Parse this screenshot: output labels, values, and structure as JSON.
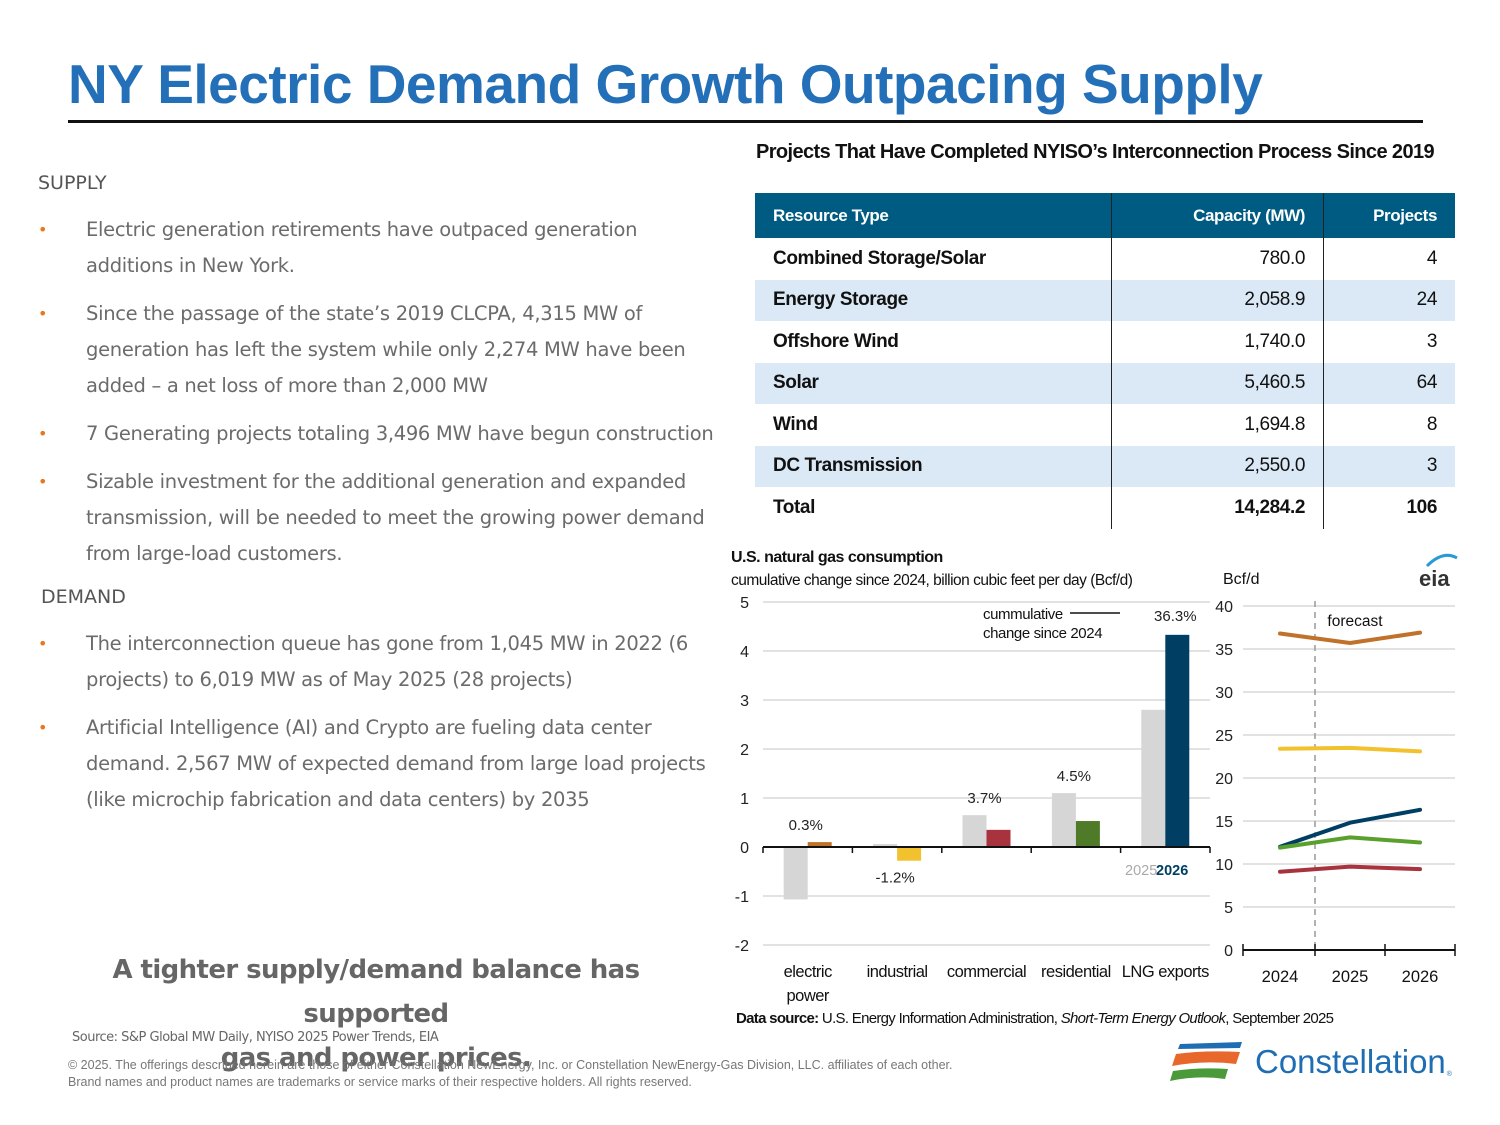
{
  "page": {
    "title": "NY Electric Demand Growth Outpacing Supply"
  },
  "left": {
    "supply_heading": "SUPPLY",
    "supply_bullets": [
      "Electric generation retirements have outpaced generation additions in New York.",
      "Since the passage of the state’s 2019 CLCPA, 4,315 MW of generation has left the system while only 2,274 MW have been added – a net loss of more than 2,000 MW",
      "7 Generating projects totaling 3,496 MW have begun construction",
      "Sizable investment for the additional generation and expanded transmission, will be needed to meet the growing power demand from large-load customers."
    ],
    "demand_heading": "DEMAND",
    "demand_bullets": [
      "The interconnection queue has gone from 1,045 MW in 2022 (6 projects) to 6,019 MW as of May 2025 (28 projects)",
      "Artificial Intelligence (AI) and Crypto are fueling data center demand. 2,567 MW of expected demand from large load projects (like microchip fabrication and data centers) by 2035"
    ],
    "bullet_glyph": "•",
    "tagline_line1": "A tighter supply/demand balance has supported",
    "tagline_line2": "gas and power prices.",
    "source": "Source: S&P Global MW Daily, NYISO 2025 Power Trends, EIA"
  },
  "footer": {
    "copyright_line1": "© 2025. The offerings described herein are those of either Constellation NewEnergy, Inc. or Constellation NewEnergy-Gas Division, LLC. affiliates of each other.",
    "copyright_line2": "Brand names and product names are trademarks or service marks of their respective holders. All rights reserved.",
    "logo_text": "Constellation",
    "logo_mark": "®"
  },
  "colors": {
    "title_blue": "#2470b8",
    "table_header": "#005b82",
    "table_alt_row": "#dbe8f5",
    "bullet_orange": "#e87722",
    "bar_2025": "#d6d6d6",
    "electric_power": "#c0722a",
    "industrial": "#f2c12e",
    "commercial": "#a8333f",
    "residential": "#4f7a28",
    "lng_exports": "#003f63",
    "line_green": "#5aa02c"
  },
  "chart_data": [
    {
      "type": "table",
      "title": "Projects That Have Completed NYISO’s Interconnection Process Since 2019",
      "columns": [
        "Resource Type",
        "Capacity (MW)",
        "Projects"
      ],
      "rows": [
        [
          "Combined Storage/Solar",
          "780.0",
          "4"
        ],
        [
          "Energy Storage",
          "2,058.9",
          "24"
        ],
        [
          "Offshore Wind",
          "1,740.0",
          "3"
        ],
        [
          "Solar",
          "5,460.5",
          "64"
        ],
        [
          "Wind",
          "1,694.8",
          "8"
        ],
        [
          "DC Transmission",
          "2,550.0",
          "3"
        ]
      ],
      "total": [
        "Total",
        "14,284.2",
        "106"
      ]
    },
    {
      "type": "bar",
      "title": "U.S. natural gas consumption",
      "subtitle": "cumulative change since 2024, billion cubic feet per day (Bcf/d)",
      "categories": [
        "electric power",
        "industrial",
        "commercial",
        "residential",
        "LNG exports"
      ],
      "category_lines": [
        [
          "electric",
          "power"
        ],
        [
          "industrial"
        ],
        [
          "commercial"
        ],
        [
          "residential"
        ],
        [
          "LNG exports"
        ]
      ],
      "series": [
        {
          "name": "2025",
          "values": [
            -1.07,
            0.06,
            0.65,
            1.1,
            2.8
          ]
        },
        {
          "name": "2026",
          "values": [
            0.1,
            -0.28,
            0.35,
            0.53,
            4.33
          ]
        }
      ],
      "annotations": [
        "0.3%",
        "-1.2%",
        "3.7%",
        "4.5%",
        "36.3%"
      ],
      "legend_note_line1": "cummulative",
      "legend_note_line2": "change since 2024",
      "ylim": [
        -2,
        5
      ],
      "yticks": [
        "5",
        "4",
        "3",
        "2",
        "1",
        "0",
        "-1",
        "-2"
      ],
      "ytick_values": [
        5,
        4,
        3,
        2,
        1,
        0,
        -1,
        -2
      ],
      "grid": true,
      "legend": "bottom-right",
      "xlabel": "",
      "ylabel": ""
    },
    {
      "type": "line",
      "ylabel": "Bcf/d",
      "x": [
        "2024",
        "2025",
        "2026"
      ],
      "ylim": [
        0,
        40
      ],
      "yticks": [
        "40",
        "35",
        "30",
        "25",
        "20",
        "15",
        "10",
        "5",
        "0"
      ],
      "ytick_values": [
        40,
        35,
        30,
        25,
        20,
        15,
        10,
        5,
        0
      ],
      "annotation": "forecast",
      "series": [
        {
          "name": "electric power",
          "values": [
            36.8,
            35.7,
            36.9
          ]
        },
        {
          "name": "industrial",
          "values": [
            23.4,
            23.5,
            23.1
          ]
        },
        {
          "name": "LNG exports",
          "values": [
            12.0,
            14.8,
            16.3
          ]
        },
        {
          "name": "residential",
          "values": [
            11.9,
            13.1,
            12.5
          ]
        },
        {
          "name": "commercial",
          "values": [
            9.1,
            9.7,
            9.4
          ]
        }
      ],
      "grid": true,
      "logo": "eia"
    }
  ],
  "data_source": {
    "label": "Data source:",
    "text": " U.S. Energy Information Administration, ",
    "italic": "Short-Term Energy Outlook",
    "suffix": ", September 2025"
  }
}
